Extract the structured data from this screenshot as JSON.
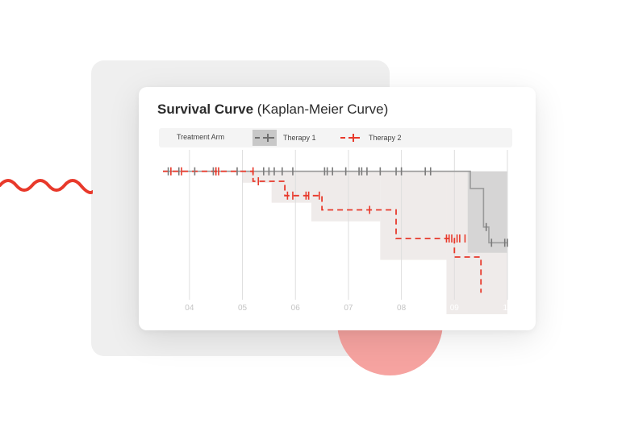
{
  "card": {
    "title_strong": "Survival Curve",
    "title_rest": "(Kaplan-Meier Curve)"
  },
  "legend": {
    "title": "Treatment Arm",
    "items": [
      {
        "label": "Therapy 1",
        "color": "#7a7a7a"
      },
      {
        "label": "Therapy 2",
        "color": "#e8392b"
      }
    ]
  },
  "colors": {
    "therapy1": "#7a7a7a",
    "therapy2": "#e8392b",
    "accent": "#e8392b",
    "band1": "#d3d3d3",
    "band2": "#efebea"
  },
  "chart_data": {
    "type": "line",
    "step": true,
    "x_ticks": [
      "04",
      "05",
      "06",
      "07",
      "08",
      "09",
      "10"
    ],
    "xlim": [
      3.5,
      10.0
    ],
    "ylim": [
      0.0,
      1.15
    ],
    "grid": true,
    "series": [
      {
        "name": "Therapy 1",
        "style": "solid",
        "steps": [
          [
            3.5,
            1.0
          ],
          [
            9.3,
            1.0
          ],
          [
            9.3,
            0.88
          ],
          [
            9.55,
            0.88
          ],
          [
            9.55,
            0.61
          ],
          [
            9.65,
            0.61
          ],
          [
            9.65,
            0.5
          ],
          [
            10.0,
            0.5
          ]
        ],
        "censor": [
          3.6,
          3.8,
          4.1,
          4.45,
          4.5,
          4.9,
          5.4,
          5.5,
          5.6,
          5.75,
          5.95,
          6.55,
          6.6,
          6.7,
          6.95,
          7.2,
          7.25,
          7.35,
          7.6,
          7.9,
          8.0,
          8.45,
          8.55,
          9.6,
          9.7,
          9.95,
          10.0
        ],
        "censor_y": [
          1.0,
          1.0,
          1.0,
          1.0,
          1.0,
          1.0,
          1.0,
          1.0,
          1.0,
          1.0,
          1.0,
          1.0,
          1.0,
          1.0,
          1.0,
          1.0,
          1.0,
          1.0,
          1.0,
          1.0,
          1.0,
          1.0,
          1.0,
          0.61,
          0.5,
          0.5,
          0.5
        ],
        "ci": [
          [
            5.2,
            9.25,
            0.88
          ],
          [
            9.25,
            10.0,
            0.43
          ]
        ]
      },
      {
        "name": "Therapy 2",
        "style": "dashed",
        "steps": [
          [
            3.5,
            1.0
          ],
          [
            5.2,
            1.0
          ],
          [
            5.2,
            0.93
          ],
          [
            5.8,
            0.93
          ],
          [
            5.8,
            0.83
          ],
          [
            6.5,
            0.83
          ],
          [
            6.5,
            0.73
          ],
          [
            7.9,
            0.73
          ],
          [
            7.9,
            0.53
          ],
          [
            9.0,
            0.53
          ],
          [
            9.0,
            0.4
          ],
          [
            9.5,
            0.4
          ],
          [
            9.5,
            0.15
          ]
        ],
        "censor": [
          3.65,
          3.85,
          4.5,
          4.55,
          5.2,
          5.3,
          5.85,
          5.95,
          6.2,
          6.25,
          6.45,
          7.4,
          8.85,
          8.9,
          8.95,
          9.05,
          9.1,
          9.2
        ],
        "censor_y": [
          1.0,
          1.0,
          1.0,
          1.0,
          1.0,
          0.93,
          0.83,
          0.83,
          0.83,
          0.83,
          0.83,
          0.73,
          0.53,
          0.53,
          0.53,
          0.53,
          0.53,
          0.53
        ],
        "ci": [
          [
            5.0,
            5.55,
            0.92
          ],
          [
            5.55,
            6.3,
            0.78
          ],
          [
            6.3,
            7.6,
            0.65
          ],
          [
            7.6,
            8.85,
            0.38
          ],
          [
            8.85,
            10.0,
            0.0
          ]
        ]
      }
    ]
  }
}
